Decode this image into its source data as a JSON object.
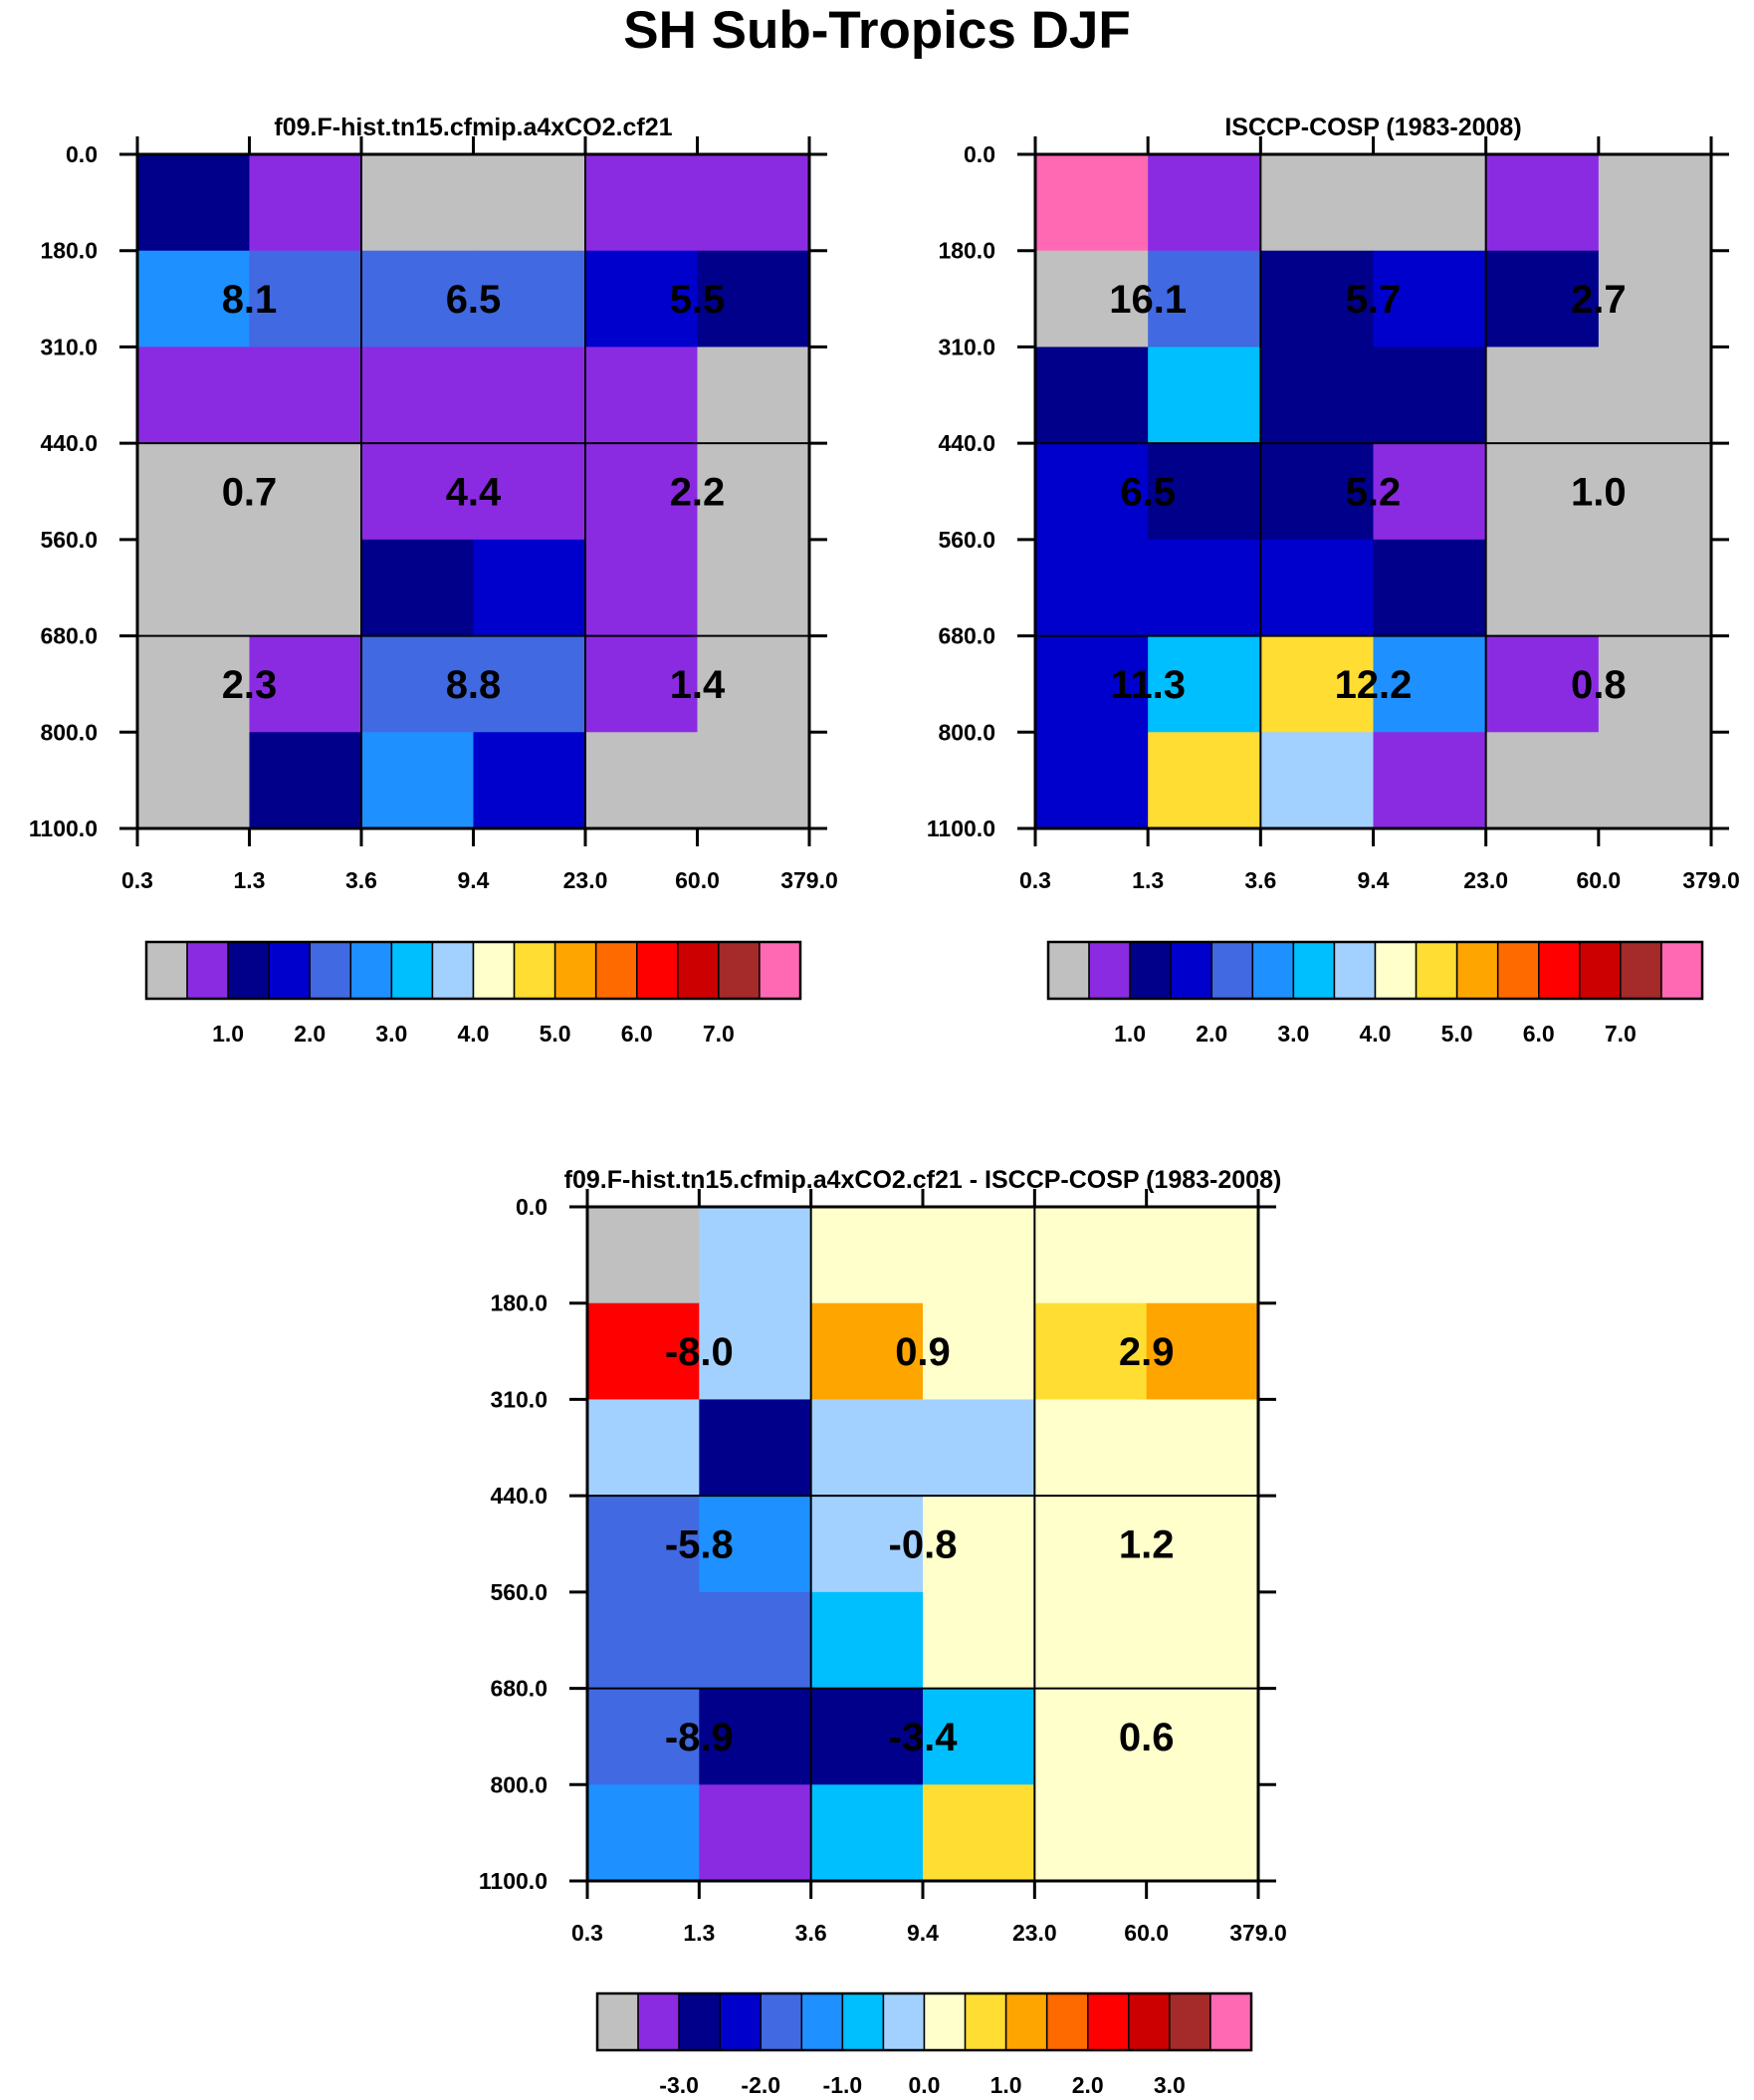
{
  "title": "SH Sub-Tropics DJF",
  "palette": {
    "gray": "#c0c0c0",
    "violet": "#8a2be2",
    "navy": "#00008b",
    "blue": "#0000cd",
    "royal": "#4169e1",
    "dodger": "#1e90ff",
    "sky": "#00bfff",
    "light": "#a3d1ff",
    "cream": "#ffffcc",
    "gold": "#ffdd33",
    "orange": "#ffa500",
    "darkorange": "#ff6a00",
    "red": "#ff0000",
    "darkred": "#cc0000",
    "brown": "#a52a2a",
    "pink": "#ff69b4"
  },
  "chart_data": [
    {
      "type": "heatmap",
      "title": "f09.F-hist.tn15.cfmip.a4xCO2.cf21",
      "x_ticks": [
        "0.3",
        "1.3",
        "3.6",
        "9.4",
        "23.0",
        "60.0",
        "379.0"
      ],
      "y_ticks": [
        "0.0",
        "180.0",
        "310.0",
        "440.0",
        "560.0",
        "680.0",
        "800.0",
        "1100.0"
      ],
      "cell_colors": [
        [
          "navy",
          "violet",
          "gray",
          "gray",
          "violet",
          "violet"
        ],
        [
          "dodger",
          "royal",
          "royal",
          "royal",
          "blue",
          "navy"
        ],
        [
          "violet",
          "violet",
          "violet",
          "violet",
          "violet",
          "gray"
        ],
        [
          "gray",
          "gray",
          "violet",
          "violet",
          "violet",
          "gray"
        ],
        [
          "gray",
          "gray",
          "navy",
          "blue",
          "violet",
          "gray"
        ],
        [
          "gray",
          "violet",
          "royal",
          "royal",
          "violet",
          "gray"
        ],
        [
          "gray",
          "navy",
          "dodger",
          "blue",
          "gray",
          "gray"
        ]
      ],
      "block_labels": [
        [
          "8.1",
          "6.5",
          "5.5"
        ],
        [
          "0.7",
          "4.4",
          "2.2"
        ],
        [
          "2.3",
          "8.8",
          "1.4"
        ]
      ],
      "colorbar": {
        "colors": [
          "gray",
          "violet",
          "navy",
          "blue",
          "royal",
          "dodger",
          "sky",
          "light",
          "cream",
          "gold",
          "orange",
          "darkorange",
          "red",
          "darkred",
          "brown",
          "pink"
        ],
        "labels": [
          "1.0",
          "2.0",
          "3.0",
          "4.0",
          "5.0",
          "6.0",
          "7.0"
        ]
      }
    },
    {
      "type": "heatmap",
      "title": "ISCCP-COSP (1983-2008)",
      "x_ticks": [
        "0.3",
        "1.3",
        "3.6",
        "9.4",
        "23.0",
        "60.0",
        "379.0"
      ],
      "y_ticks": [
        "0.0",
        "180.0",
        "310.0",
        "440.0",
        "560.0",
        "680.0",
        "800.0",
        "1100.0"
      ],
      "cell_colors": [
        [
          "pink",
          "violet",
          "gray",
          "gray",
          "violet",
          "gray"
        ],
        [
          "gray",
          "royal",
          "navy",
          "blue",
          "navy",
          "gray"
        ],
        [
          "navy",
          "sky",
          "navy",
          "navy",
          "gray",
          "gray"
        ],
        [
          "blue",
          "navy",
          "navy",
          "violet",
          "gray",
          "gray"
        ],
        [
          "blue",
          "blue",
          "blue",
          "navy",
          "gray",
          "gray"
        ],
        [
          "blue",
          "sky",
          "gold",
          "dodger",
          "violet",
          "gray"
        ],
        [
          "blue",
          "gold",
          "light",
          "violet",
          "gray",
          "gray"
        ]
      ],
      "block_labels": [
        [
          "16.1",
          "5.7",
          "2.7"
        ],
        [
          "6.5",
          "5.2",
          "1.0"
        ],
        [
          "11.3",
          "12.2",
          "0.8"
        ]
      ],
      "colorbar": {
        "colors": [
          "gray",
          "violet",
          "navy",
          "blue",
          "royal",
          "dodger",
          "sky",
          "light",
          "cream",
          "gold",
          "orange",
          "darkorange",
          "red",
          "darkred",
          "brown",
          "pink"
        ],
        "labels": [
          "1.0",
          "2.0",
          "3.0",
          "4.0",
          "5.0",
          "6.0",
          "7.0"
        ]
      }
    },
    {
      "type": "heatmap",
      "title": "f09.F-hist.tn15.cfmip.a4xCO2.cf21 - ISCCP-COSP (1983-2008)",
      "x_ticks": [
        "0.3",
        "1.3",
        "3.6",
        "9.4",
        "23.0",
        "60.0",
        "379.0"
      ],
      "y_ticks": [
        "0.0",
        "180.0",
        "310.0",
        "440.0",
        "560.0",
        "680.0",
        "800.0",
        "1100.0"
      ],
      "cell_colors": [
        [
          "gray",
          "light",
          "cream",
          "cream",
          "cream",
          "cream"
        ],
        [
          "red",
          "light",
          "orange",
          "cream",
          "gold",
          "orange"
        ],
        [
          "light",
          "navy",
          "light",
          "light",
          "cream",
          "cream"
        ],
        [
          "royal",
          "dodger",
          "light",
          "cream",
          "cream",
          "cream"
        ],
        [
          "royal",
          "royal",
          "sky",
          "cream",
          "cream",
          "cream"
        ],
        [
          "royal",
          "navy",
          "navy",
          "sky",
          "cream",
          "cream"
        ],
        [
          "dodger",
          "violet",
          "sky",
          "gold",
          "cream",
          "cream"
        ]
      ],
      "block_labels": [
        [
          "-8.0",
          "0.9",
          "2.9"
        ],
        [
          "-5.8",
          "-0.8",
          "1.2"
        ],
        [
          "-8.9",
          "-3.4",
          "0.6"
        ]
      ],
      "colorbar": {
        "colors": [
          "gray",
          "violet",
          "navy",
          "blue",
          "royal",
          "dodger",
          "sky",
          "light",
          "cream",
          "gold",
          "orange",
          "darkorange",
          "red",
          "darkred",
          "brown",
          "pink"
        ],
        "labels": [
          "-3.0",
          "-2.0",
          "-1.0",
          "0.0",
          "1.0",
          "2.0",
          "3.0"
        ]
      }
    }
  ]
}
